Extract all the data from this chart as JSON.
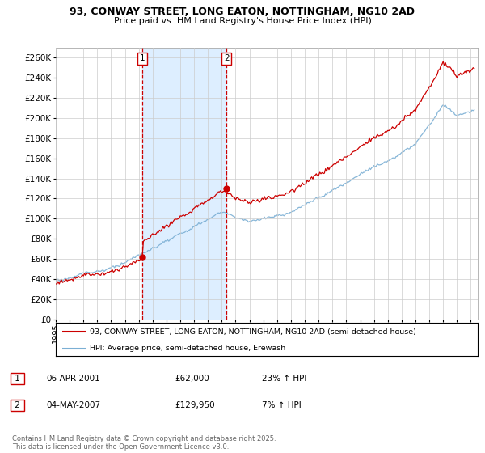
{
  "title": "93, CONWAY STREET, LONG EATON, NOTTINGHAM, NG10 2AD",
  "subtitle": "Price paid vs. HM Land Registry's House Price Index (HPI)",
  "legend_label_red": "93, CONWAY STREET, LONG EATON, NOTTINGHAM, NG10 2AD (semi-detached house)",
  "legend_label_blue": "HPI: Average price, semi-detached house, Erewash",
  "annotation1_date": "06-APR-2001",
  "annotation1_price": "£62,000",
  "annotation1_hpi": "23% ↑ HPI",
  "annotation2_date": "04-MAY-2007",
  "annotation2_price": "£129,950",
  "annotation2_hpi": "7% ↑ HPI",
  "footnote": "Contains HM Land Registry data © Crown copyright and database right 2025.\nThis data is licensed under the Open Government Licence v3.0.",
  "ylim": [
    0,
    270000
  ],
  "ytick_step": 20000,
  "red_color": "#cc0000",
  "blue_color": "#7bafd4",
  "shade_color": "#ddeeff",
  "grid_color": "#cccccc",
  "background_color": "#ffffff"
}
